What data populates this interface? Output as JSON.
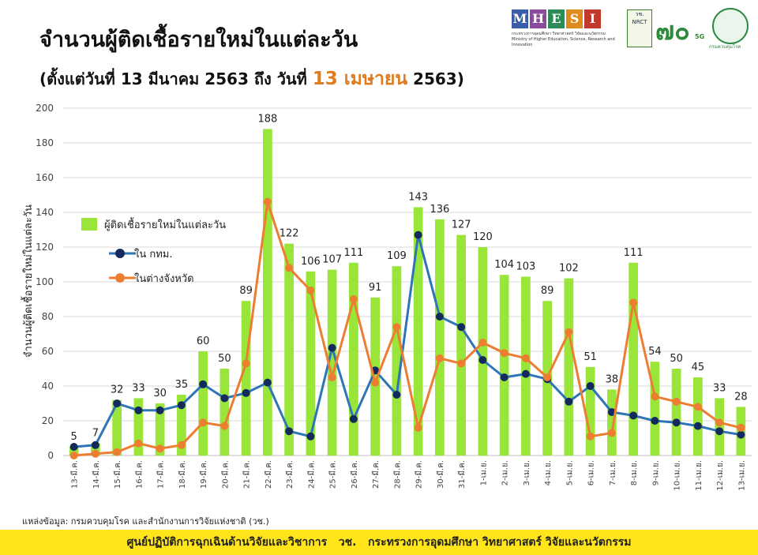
{
  "title": "จำนวนผู้ติดเชื้อรายใหม่ในแต่ละวัน",
  "subtitle_pre": "(ตั้งแต่วันที่ 13 มีนาคม 2563 ถึง วันที่ ",
  "subtitle_highlight": "13 เมษายน",
  "subtitle_post": " 2563)",
  "logos": {
    "mhesi_letters": [
      "M",
      "H",
      "E",
      "S",
      "I"
    ],
    "mhesi_colors": [
      "#3b5ca8",
      "#8a4a9e",
      "#2e8b57",
      "#e08a1e",
      "#c0392b"
    ],
    "mhesi_caption": "กระทรวงการอุดมศึกษา วิทยาศาสตร์ วิจัยและนวัตกรรม Ministry of Higher Education, Science, Research and Innovation",
    "nrct_label": "วช. NRCT",
    "seventy_label": "๗๐",
    "fiveg_label": "5G",
    "moph_caption": "กรมควบคุมโรค"
  },
  "source": "แหล่งข้อมูล: กรมควบคุมโรค และสำนักงานการวิจัยแห่งชาติ (วช.)",
  "footer": "ศูนย์ปฏิบัติการฉุกเฉินด้านวิจัยและวิชาการ   วช.   กระทรวงการอุดมศึกษา วิทยาศาสตร์ วิจัยและนวัตกรรม",
  "chart_data": {
    "type": "bar",
    "ylabel": "จำนวนผู้ติดเชื้อรายใหม่ในแต่ละวัน",
    "ylim": [
      0,
      200
    ],
    "yticks": [
      0,
      20,
      40,
      60,
      80,
      100,
      120,
      140,
      160,
      180,
      200
    ],
    "grid": true,
    "legend_position": "upper-left",
    "categories": [
      "13-มี.ค.",
      "14-มี.ค.",
      "15-มี.ค.",
      "16-มี.ค.",
      "17-มี.ค.",
      "18-มี.ค.",
      "19-มี.ค.",
      "20-มี.ค.",
      "21-มี.ค.",
      "22-มี.ค.",
      "23-มี.ค.",
      "24-มี.ค.",
      "25-มี.ค.",
      "26-มี.ค.",
      "27-มี.ค.",
      "28-มี.ค.",
      "29-มี.ค.",
      "30-มี.ค.",
      "31-มี.ค.",
      "1-เม.ย.",
      "2-เม.ย.",
      "3-เม.ย.",
      "4-เม.ย.",
      "5-เม.ย.",
      "6-เม.ย.",
      "7-เม.ย.",
      "8-เม.ย.",
      "9-เม.ย.",
      "10-เม.ย.",
      "11-เม.ย.",
      "12-เม.ย.",
      "13-เม.ย."
    ],
    "series": [
      {
        "name": "ผู้ติดเชื้อรายใหม่ในแต่ละวัน",
        "type": "bar",
        "color": "#99e53a",
        "values": [
          5,
          7,
          32,
          33,
          30,
          35,
          60,
          50,
          89,
          188,
          122,
          106,
          107,
          111,
          91,
          109,
          143,
          136,
          127,
          120,
          104,
          103,
          89,
          102,
          51,
          38,
          111,
          54,
          50,
          45,
          33,
          28
        ]
      },
      {
        "name": "ใน กทม.",
        "type": "line",
        "color": "#2e75b6",
        "marker_color": "#142a5c",
        "values": [
          5,
          6,
          30,
          26,
          26,
          29,
          41,
          33,
          36,
          42,
          14,
          11,
          62,
          21,
          49,
          35,
          127,
          80,
          74,
          55,
          45,
          47,
          44,
          31,
          40,
          25,
          23,
          20,
          19,
          17,
          14,
          12
        ]
      },
      {
        "name": "ในต่างจังหวัด",
        "type": "line",
        "color": "#ed7d31",
        "marker_color": "#ed7d31",
        "values": [
          0,
          1,
          2,
          7,
          4,
          6,
          19,
          17,
          53,
          146,
          108,
          95,
          45,
          90,
          42,
          74,
          16,
          56,
          53,
          65,
          59,
          56,
          45,
          71,
          11,
          13,
          88,
          34,
          31,
          28,
          19,
          16
        ]
      }
    ]
  }
}
